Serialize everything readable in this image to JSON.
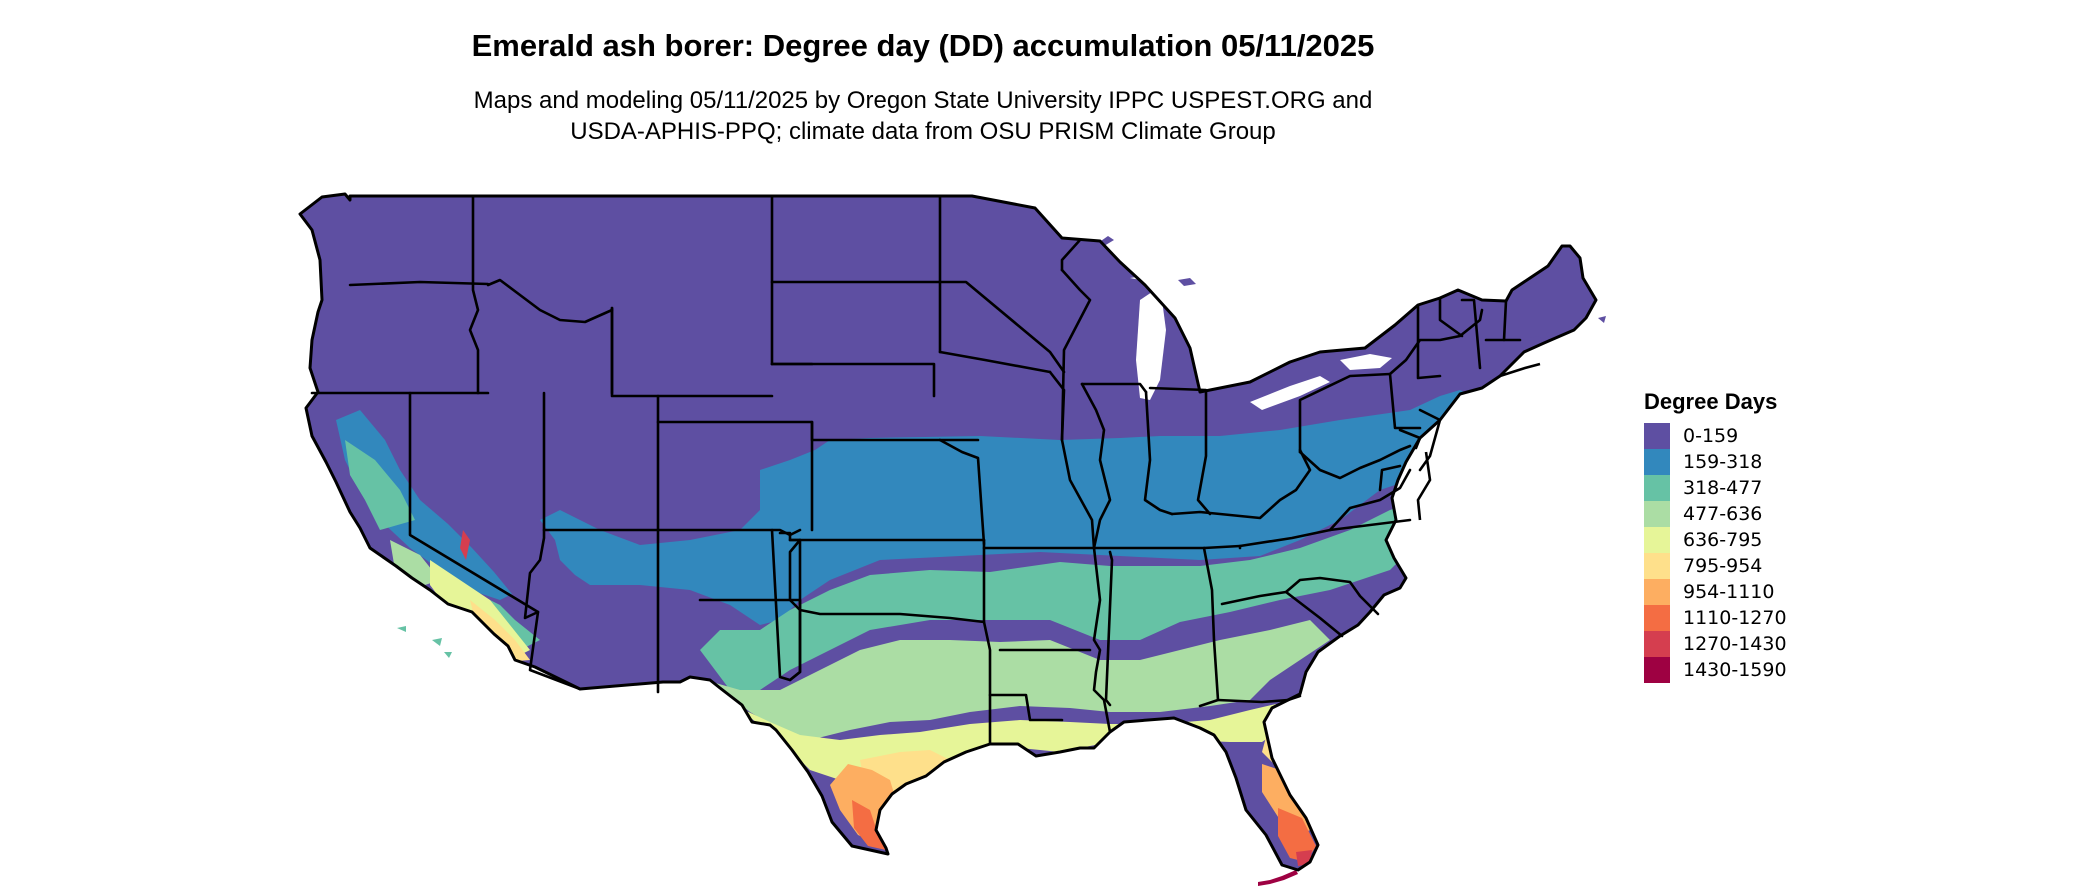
{
  "title": "Emerald ash borer: Degree day (DD) accumulation 05/11/2025",
  "subtitle_line1": "Maps and modeling 05/11/2025 by Oregon State University IPPC USPEST.ORG and",
  "subtitle_line2": "USDA-APHIS-PPQ; climate data from OSU PRISM Climate Group",
  "legend": {
    "title": "Degree Days",
    "items": [
      {
        "label": "0-159",
        "color": "#5e4fa2"
      },
      {
        "label": "159-318",
        "color": "#3288bd"
      },
      {
        "label": "318-477",
        "color": "#66c2a5"
      },
      {
        "label": "477-636",
        "color": "#abdda4"
      },
      {
        "label": "636-795",
        "color": "#e6f598"
      },
      {
        "label": "795-954",
        "color": "#fee08b"
      },
      {
        "label": "954-1110",
        "color": "#fdae61"
      },
      {
        "label": "1110-1270",
        "color": "#f46d43"
      },
      {
        "label": "1270-1430",
        "color": "#d53e4f"
      },
      {
        "label": "1430-1590",
        "color": "#9e0142"
      }
    ]
  }
}
